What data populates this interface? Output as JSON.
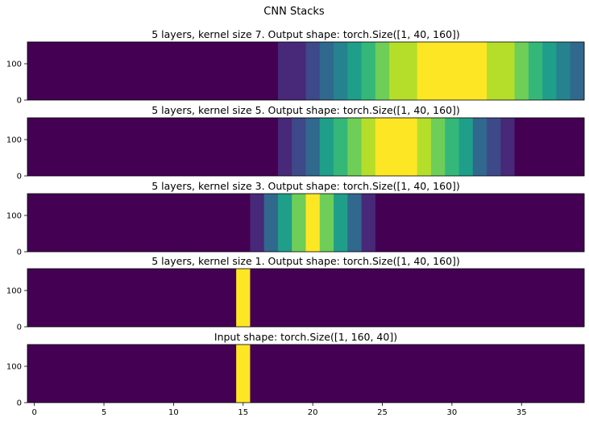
{
  "figure": {
    "suptitle": "CNN Stacks"
  },
  "colors": {
    "viridis": [
      "#440154",
      "#482878",
      "#3e4989",
      "#31688e",
      "#26828e",
      "#1f9e89",
      "#35b779",
      "#6ece58",
      "#b5de2b",
      "#fde725"
    ]
  },
  "chart_data": [
    {
      "type": "heatmap",
      "title": "5 layers, kernel size 7. Output shape: torch.Size([1, 40, 160])",
      "xlim": [
        -0.5,
        39.5
      ],
      "ylim": [
        0,
        160
      ],
      "yticks": [
        "0",
        "100"
      ],
      "xticks": [],
      "values": [
        0,
        0,
        0,
        0,
        0,
        0,
        0,
        0,
        0,
        0,
        0,
        0,
        0,
        0,
        0,
        0.005,
        0.01,
        0.03,
        0.06,
        0.11,
        0.19,
        0.29,
        0.41,
        0.54,
        0.66,
        0.77,
        0.86,
        0.93,
        0.97,
        0.99,
        1.0,
        0.99,
        0.97,
        0.93,
        0.86,
        0.77,
        0.66,
        0.54,
        0.41,
        0.29
      ]
    },
    {
      "type": "heatmap",
      "title": "5 layers, kernel size 5. Output shape: torch.Size([1, 40, 160])",
      "xlim": [
        -0.5,
        39.5
      ],
      "ylim": [
        0,
        160
      ],
      "yticks": [
        "0",
        "100"
      ],
      "xticks": [],
      "values": [
        0,
        0,
        0,
        0,
        0,
        0,
        0,
        0,
        0,
        0,
        0,
        0,
        0,
        0,
        0,
        0,
        0.015,
        0.04,
        0.1,
        0.2,
        0.34,
        0.5,
        0.66,
        0.8,
        0.9,
        0.96,
        0.99,
        0.96,
        0.9,
        0.8,
        0.66,
        0.5,
        0.34,
        0.2,
        0.1,
        0.04,
        0.015,
        0,
        0,
        0
      ]
    },
    {
      "type": "heatmap",
      "title": "5 layers, kernel size 3. Output shape: torch.Size([1, 40, 160])",
      "xlim": [
        -0.5,
        39.5
      ],
      "ylim": [
        0,
        160
      ],
      "yticks": [
        "0",
        "100"
      ],
      "xticks": [],
      "values": [
        0,
        0,
        0,
        0,
        0,
        0,
        0,
        0,
        0,
        0,
        0,
        0,
        0,
        0,
        0,
        0.03,
        0.12,
        0.3,
        0.55,
        0.82,
        1.0,
        0.82,
        0.55,
        0.3,
        0.12,
        0.03,
        0,
        0,
        0,
        0,
        0,
        0,
        0,
        0,
        0,
        0,
        0,
        0,
        0,
        0
      ]
    },
    {
      "type": "heatmap",
      "title": "5 layers, kernel size 1. Output shape: torch.Size([1, 40, 160])",
      "xlim": [
        -0.5,
        39.5
      ],
      "ylim": [
        0,
        160
      ],
      "yticks": [
        "0",
        "100"
      ],
      "xticks": [],
      "values": [
        0,
        0,
        0,
        0,
        0,
        0,
        0,
        0,
        0,
        0,
        0,
        0,
        0,
        0,
        0,
        1,
        0,
        0,
        0,
        0,
        0,
        0,
        0,
        0,
        0,
        0,
        0,
        0,
        0,
        0,
        0,
        0,
        0,
        0,
        0,
        0,
        0,
        0,
        0,
        0
      ]
    },
    {
      "type": "heatmap",
      "title": "Input shape: torch.Size([1, 160, 40])",
      "xlim": [
        -0.5,
        39.5
      ],
      "ylim": [
        0,
        160
      ],
      "yticks": [
        "0",
        "100"
      ],
      "xticks": [
        "0",
        "5",
        "10",
        "15",
        "20",
        "25",
        "30",
        "35"
      ],
      "values": [
        0,
        0,
        0,
        0,
        0,
        0,
        0,
        0,
        0,
        0,
        0,
        0,
        0,
        0,
        0,
        1,
        0,
        0,
        0,
        0,
        0,
        0,
        0,
        0,
        0,
        0,
        0,
        0,
        0,
        0,
        0,
        0,
        0,
        0,
        0,
        0,
        0,
        0,
        0,
        0
      ]
    }
  ]
}
